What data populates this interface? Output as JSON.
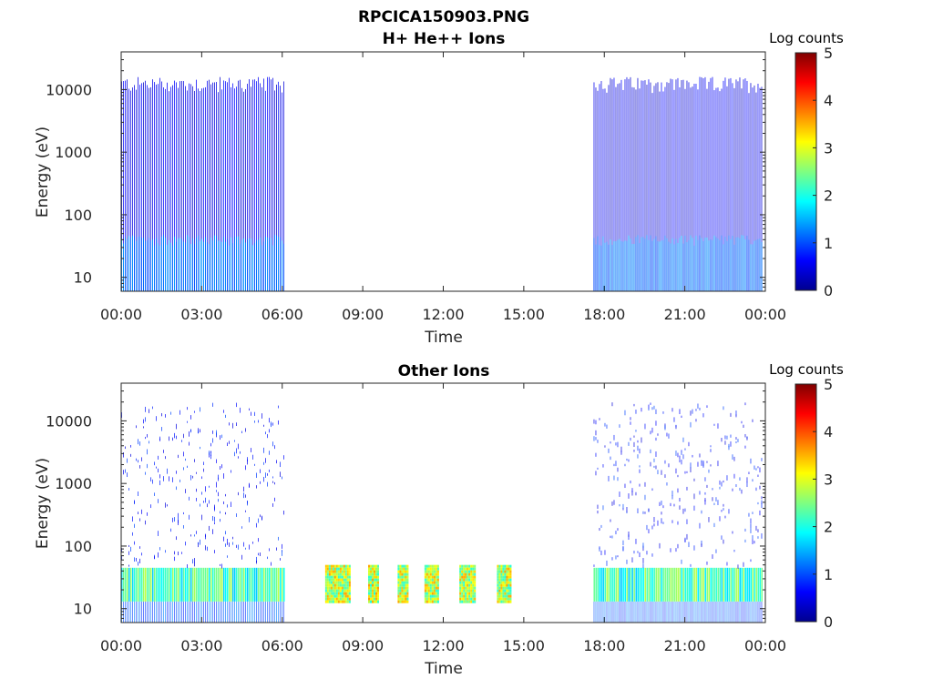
{
  "figure": {
    "title": "RPCICA150903.PNG"
  },
  "chart_data": [
    {
      "type": "heatmap",
      "title": "H+ He++ Ions",
      "xlabel": "Time",
      "ylabel": "Energy (eV)",
      "x_tick_labels": [
        "00:00",
        "03:00",
        "06:00",
        "09:00",
        "12:00",
        "15:00",
        "18:00",
        "21:00",
        "00:00"
      ],
      "x_ticks_hours": [
        0,
        3,
        6,
        9,
        12,
        15,
        18,
        21,
        24
      ],
      "xlim_hours": [
        0,
        24
      ],
      "y_tick_labels": [
        "10",
        "100",
        "1000",
        "10000"
      ],
      "y_ticks": [
        10,
        100,
        1000,
        10000
      ],
      "ylim": [
        6,
        40000
      ],
      "yscale": "log",
      "colorbar": {
        "label": "Log counts",
        "tick_labels": [
          "0",
          "1",
          "2",
          "3",
          "4",
          "5"
        ],
        "range": [
          0,
          5
        ],
        "colormap": "jet"
      },
      "data_intervals": [
        {
          "start_hour": 0.0,
          "end_hour": 6.1,
          "low_energy_log_counts": 1.0,
          "high_energy_log_counts": 0.3,
          "max_energy": 16000
        },
        {
          "start_hour": 17.6,
          "end_hour": 23.9,
          "low_energy_log_counts": 1.0,
          "high_energy_log_counts": 0.3,
          "max_energy": 16000
        }
      ],
      "gap_intervals": [
        {
          "start_hour": 6.1,
          "end_hour": 17.6
        }
      ]
    },
    {
      "type": "heatmap",
      "title": "Other Ions",
      "xlabel": "Time",
      "ylabel": "Energy (eV)",
      "x_tick_labels": [
        "00:00",
        "03:00",
        "06:00",
        "09:00",
        "12:00",
        "15:00",
        "18:00",
        "21:00",
        "00:00"
      ],
      "x_ticks_hours": [
        0,
        3,
        6,
        9,
        12,
        15,
        18,
        21,
        24
      ],
      "xlim_hours": [
        0,
        24
      ],
      "y_tick_labels": [
        "10",
        "100",
        "1000",
        "10000"
      ],
      "y_ticks": [
        10,
        100,
        1000,
        10000
      ],
      "ylim": [
        6,
        40000
      ],
      "yscale": "log",
      "colorbar": {
        "label": "Log counts",
        "tick_labels": [
          "0",
          "1",
          "2",
          "3",
          "4",
          "5"
        ],
        "range": [
          0,
          5
        ],
        "colormap": "jet"
      },
      "data_intervals": [
        {
          "start_hour": 0.0,
          "end_hour": 6.1,
          "band_energy": [
            13,
            45
          ],
          "band_log_counts": 2.2,
          "sparse_max_energy": 20000
        },
        {
          "start_hour": 17.6,
          "end_hour": 23.9,
          "band_energy": [
            13,
            45
          ],
          "band_log_counts": 2.2,
          "sparse_max_energy": 20000
        }
      ],
      "bursts": [
        {
          "start_hour": 7.6,
          "end_hour": 8.5,
          "energy": [
            13,
            50
          ],
          "log_counts": 2.8
        },
        {
          "start_hour": 9.2,
          "end_hour": 9.6,
          "energy": [
            13,
            50
          ],
          "log_counts": 2.8
        },
        {
          "start_hour": 10.3,
          "end_hour": 10.7,
          "energy": [
            13,
            50
          ],
          "log_counts": 2.8
        },
        {
          "start_hour": 11.3,
          "end_hour": 11.8,
          "energy": [
            13,
            50
          ],
          "log_counts": 2.8
        },
        {
          "start_hour": 12.6,
          "end_hour": 13.2,
          "energy": [
            13,
            50
          ],
          "log_counts": 2.8
        },
        {
          "start_hour": 14.0,
          "end_hour": 14.5,
          "energy": [
            13,
            50
          ],
          "log_counts": 2.8
        }
      ]
    }
  ]
}
